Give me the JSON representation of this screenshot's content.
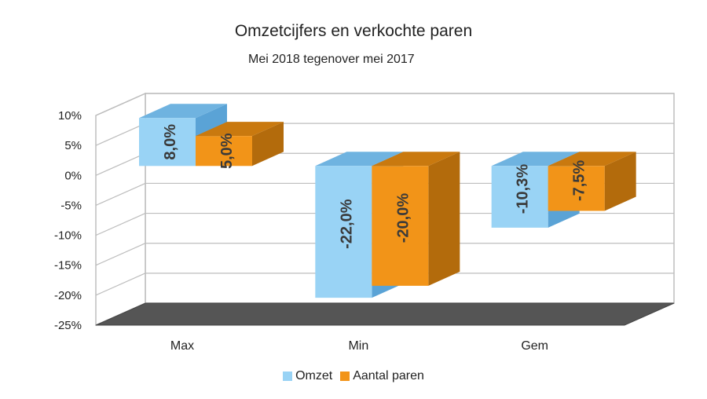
{
  "chart_data": {
    "type": "bar",
    "title": "Omzetcijfers en verkochte paren",
    "subtitle": "Mei 2018 tegenover mei 2017",
    "categories": [
      "Max",
      "Min",
      "Gem"
    ],
    "series": [
      {
        "name": "Omzet",
        "values": [
          8.0,
          -22.0,
          -10.3
        ],
        "labels": [
          "8,0%",
          "-22,0%",
          "-10,3%"
        ],
        "color": "#99d3f5",
        "side_color": "#5aa3d6",
        "top_color": "#6fb3e0"
      },
      {
        "name": "Aantal paren",
        "values": [
          5.0,
          -20.0,
          -7.5
        ],
        "labels": [
          "5,0%",
          "-20,0%",
          "-7,5%"
        ],
        "color": "#f29418",
        "side_color": "#b36b0c",
        "top_color": "#c9790f"
      }
    ],
    "y_ticks": [
      "10%",
      "5%",
      "0%",
      "-5%",
      "-10%",
      "-15%",
      "-20%",
      "-25%"
    ],
    "ylim": [
      -25,
      10
    ],
    "grid": true,
    "legend_position": "bottom"
  }
}
